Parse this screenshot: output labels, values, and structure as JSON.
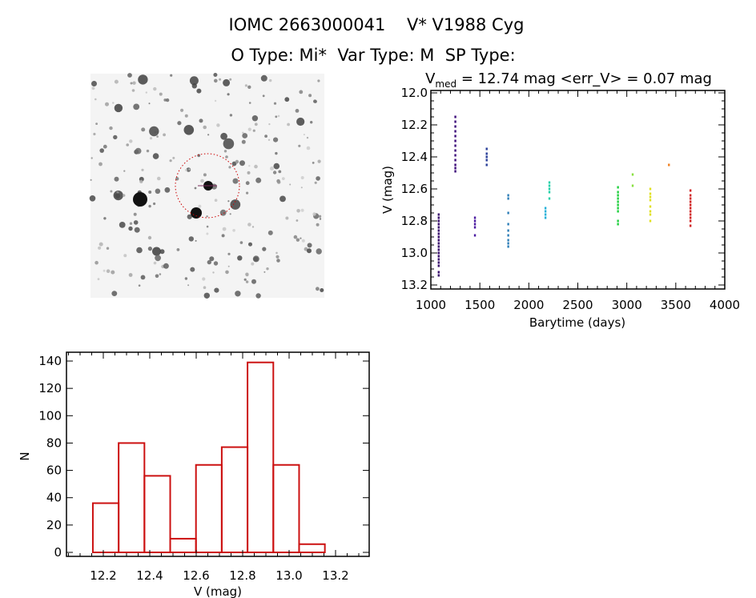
{
  "header": {
    "title": "IOMC 2663000041    V* V1988 Cyg",
    "subtitle": "O Type: Mi*  Var Type: M  SP Type:"
  },
  "finder_chart": {
    "marker_color": "#cc0000"
  },
  "chart_data": [
    {
      "type": "scatter",
      "title_prefix": "V",
      "title_sub": "med",
      "title_rest": " = 12.74 mag <err_V> = 0.07 mag",
      "xlabel": "Barytime (days)",
      "ylabel": "V (mag)",
      "xlim": [
        1000,
        4000
      ],
      "ylim": [
        13.2,
        12.0
      ],
      "y_inverted": true,
      "xticks": [
        "1000",
        "1500",
        "2000",
        "2500",
        "3000",
        "3500",
        "4000"
      ],
      "yticks": [
        "12.0",
        "12.2",
        "12.4",
        "12.6",
        "12.8",
        "13.0",
        "13.2"
      ],
      "series": [
        {
          "color": "#3a0f6e",
          "x": 1080,
          "y": [
            12.76,
            12.78,
            12.8,
            12.82,
            12.84,
            12.86,
            12.88,
            12.9,
            12.92,
            12.94,
            12.96,
            12.98,
            13.0,
            13.02,
            13.04,
            13.06,
            13.08,
            13.12,
            13.14
          ]
        },
        {
          "color": "#3c0a7a",
          "x": 1250,
          "y": [
            12.15,
            12.18,
            12.21,
            12.24,
            12.27,
            12.3,
            12.33,
            12.36,
            12.39,
            12.42,
            12.45,
            12.47,
            12.49
          ]
        },
        {
          "color": "#4a1aa0",
          "x": 1450,
          "y": [
            12.78,
            12.8,
            12.82,
            12.84,
            12.89
          ]
        },
        {
          "color": "#2a3f9a",
          "x": 1570,
          "y": [
            12.35,
            12.38,
            12.4,
            12.42,
            12.45
          ]
        },
        {
          "color": "#2f7fb8",
          "x": 1790,
          "y": [
            12.64,
            12.66,
            12.75,
            12.82,
            12.86,
            12.89,
            12.92,
            12.94,
            12.96
          ]
        },
        {
          "color": "#22b0d8",
          "x": 2170,
          "y": [
            12.72,
            12.74,
            12.76,
            12.78
          ]
        },
        {
          "color": "#20d0a8",
          "x": 2210,
          "y": [
            12.56,
            12.58,
            12.6,
            12.62,
            12.66
          ]
        },
        {
          "color": "#22d040",
          "x": 2910,
          "y": [
            12.59,
            12.62,
            12.64,
            12.66,
            12.68,
            12.7,
            12.72,
            12.74,
            12.8,
            12.82
          ]
        },
        {
          "color": "#88e040",
          "x": 3060,
          "y": [
            12.51,
            12.58
          ]
        },
        {
          "color": "#e0e020",
          "x": 3240,
          "y": [
            12.6,
            12.63,
            12.65,
            12.67,
            12.71,
            12.74,
            12.76,
            12.8
          ]
        },
        {
          "color": "#f08020",
          "x": 3430,
          "y": [
            12.45
          ]
        },
        {
          "color": "#d02020",
          "x": 3650,
          "y": [
            12.61,
            12.64,
            12.66,
            12.68,
            12.7,
            12.72,
            12.74,
            12.76,
            12.78,
            12.8,
            12.83
          ]
        }
      ]
    },
    {
      "type": "bar",
      "subtype": "histogram",
      "xlabel": "V (mag)",
      "ylabel": "N",
      "xlim": [
        12.04,
        13.35
      ],
      "ylim": [
        0,
        145
      ],
      "xticks": [
        "12.2",
        "12.4",
        "12.6",
        "12.8",
        "13.0",
        "13.2"
      ],
      "yticks": [
        "0",
        "20",
        "40",
        "60",
        "80",
        "100",
        "120",
        "140"
      ],
      "bin_start": 12.155,
      "bin_width": 0.111,
      "values": [
        36,
        80,
        56,
        10,
        64,
        77,
        139,
        64,
        6
      ],
      "color": "#cc1111"
    }
  ]
}
